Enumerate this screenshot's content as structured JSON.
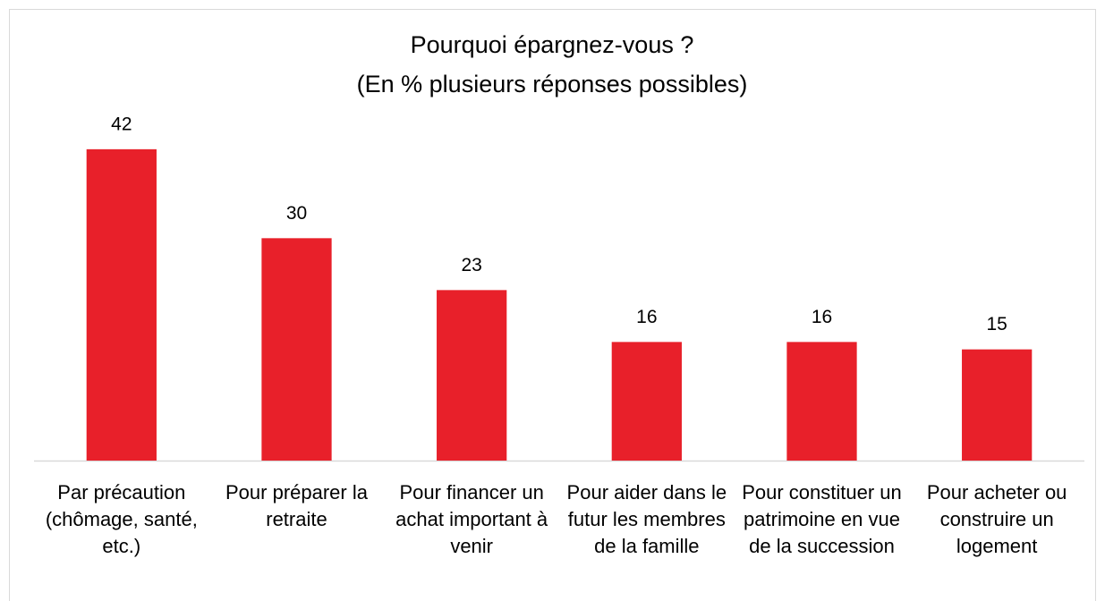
{
  "chart_data": {
    "type": "bar",
    "title": "Pourquoi épargnez-vous ?",
    "subtitle": "(En % plusieurs réponses possibles)",
    "categories": [
      "Par précaution (chômage, santé, etc.)",
      "Pour préparer la retraite",
      "Pour financer un achat important à venir",
      "Pour aider dans le futur les membres de la famille",
      "Pour constituer un patrimoine en vue de la succession",
      "Pour acheter ou construire un logement"
    ],
    "values": [
      42,
      30,
      23,
      16,
      16,
      15
    ],
    "color": "#e8202a",
    "ylim": [
      0,
      45
    ]
  }
}
